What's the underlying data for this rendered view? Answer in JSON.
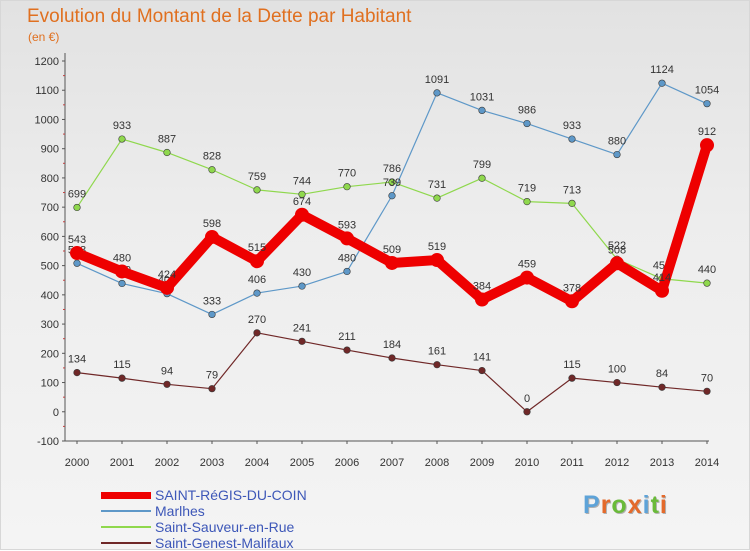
{
  "header": {
    "title": "Evolution du Montant de la Dette par Habitant",
    "subtitle": "(en €)"
  },
  "logo": {
    "text": "Proxiti",
    "letter_colors": [
      "#5ea3d8",
      "#e46a2b",
      "#6aba3a",
      "#e46a2b",
      "#5ea3d8",
      "#6aba3a",
      "#e46a2b"
    ]
  },
  "chart_data": {
    "type": "line",
    "x": [
      "2000",
      "2001",
      "2002",
      "2003",
      "2004",
      "2005",
      "2006",
      "2007",
      "2008",
      "2009",
      "2010",
      "2011",
      "2012",
      "2013",
      "2014"
    ],
    "ylim": [
      -100,
      1200
    ],
    "yticks": [
      -100,
      0,
      100,
      200,
      300,
      400,
      500,
      600,
      700,
      800,
      900,
      1000,
      1100,
      1200
    ],
    "grid": false,
    "legend": "bottom-left",
    "series": [
      {
        "name": "Saint-Genest-Malifaux",
        "color": "#702828",
        "values": [
          134,
          115,
          94,
          79,
          270,
          241,
          211,
          184,
          161,
          141,
          0,
          115,
          100,
          84,
          70
        ]
      },
      {
        "name": "Saint-Sauveur-en-Rue",
        "color": "#8fd84d",
        "values": [
          699,
          933,
          887,
          828,
          759,
          744,
          770,
          786,
          731,
          799,
          719,
          713,
          522,
          455,
          440
        ]
      },
      {
        "name": "Marlhes",
        "color": "#5e98c8",
        "values": [
          508,
          439,
          404,
          333,
          406,
          430,
          480,
          739,
          1091,
          1031,
          986,
          933,
          880,
          1124,
          1054
        ]
      },
      {
        "name": "SAINT-RéGIS-DU-COIN",
        "color": "#ee0000",
        "values": [
          543,
          480,
          424,
          598,
          515,
          674,
          593,
          509,
          519,
          384,
          459,
          378,
          508,
          414,
          912
        ]
      }
    ]
  }
}
